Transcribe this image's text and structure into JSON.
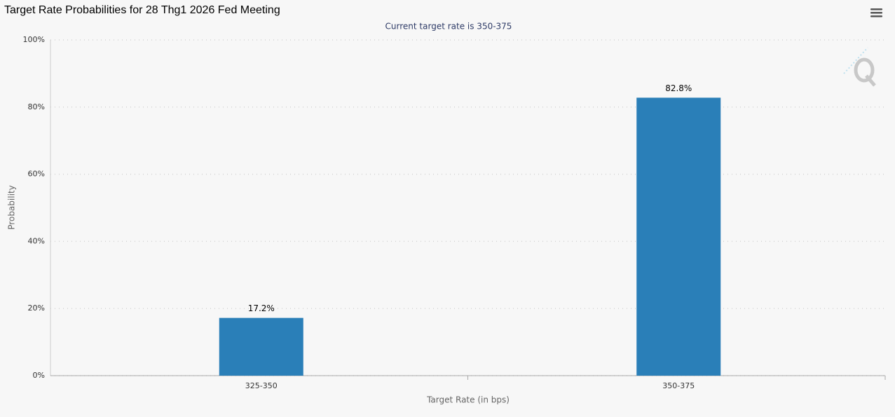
{
  "chart_data": {
    "type": "bar",
    "title": "Target Rate Probabilities for 28 Thg1 2026 Fed Meeting",
    "subtitle": "Current target rate is 350-375",
    "y_label": "Probability",
    "x_label": "Target Rate (in bps)",
    "categories": [
      "325-350",
      "350-375"
    ],
    "values": [
      17.2,
      82.8
    ],
    "value_labels": [
      "17.2%",
      "82.8%"
    ],
    "color": "#2a7fb8",
    "ylim": [
      0,
      100
    ],
    "yticks": [
      {
        "value": 0,
        "label": "0%"
      },
      {
        "value": 20,
        "label": "20%"
      },
      {
        "value": 40,
        "label": "40%"
      },
      {
        "value": 60,
        "label": "60%"
      },
      {
        "value": 80,
        "label": "80%"
      },
      {
        "value": 100,
        "label": "100%"
      }
    ],
    "grid": true
  }
}
